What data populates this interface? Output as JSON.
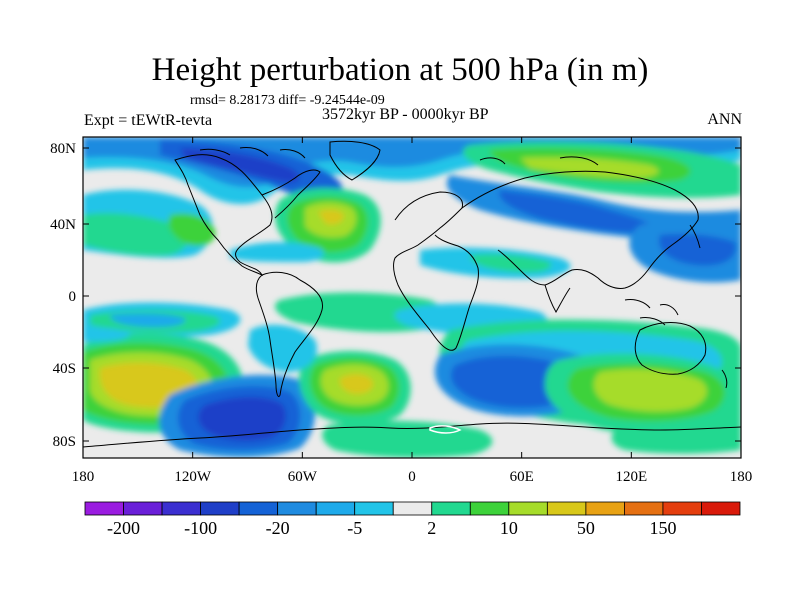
{
  "title": "Height perturbation at 500 hPa (in m)",
  "stats_text": "rmsd= 8.28173 diff= -9.24544e-09",
  "experiment_label": "Expt = tEWtR-tevta",
  "period_label": "3572kyr BP - 0000kyr BP",
  "season_label": "ANN",
  "lat_ticks": [
    "80N",
    "40N",
    "0",
    "40S",
    "80S"
  ],
  "lon_ticks": [
    "180",
    "120W",
    "60W",
    "0",
    "60E",
    "120E",
    "180"
  ],
  "colorbar": {
    "colors": [
      "#9a1ce0",
      "#6a1fd8",
      "#3b2fd0",
      "#1f3fc8",
      "#1462d6",
      "#1f8be0",
      "#1eaaea",
      "#22c4e8",
      "#ebebeb",
      "#22d890",
      "#3dd23a",
      "#a6dc2a",
      "#d8c81a",
      "#e8a214",
      "#e57012",
      "#e43e0e",
      "#d91a0a"
    ],
    "labels": [
      "-200",
      "-100",
      "-20",
      "-5",
      "2",
      "10",
      "50",
      "150"
    ]
  }
}
